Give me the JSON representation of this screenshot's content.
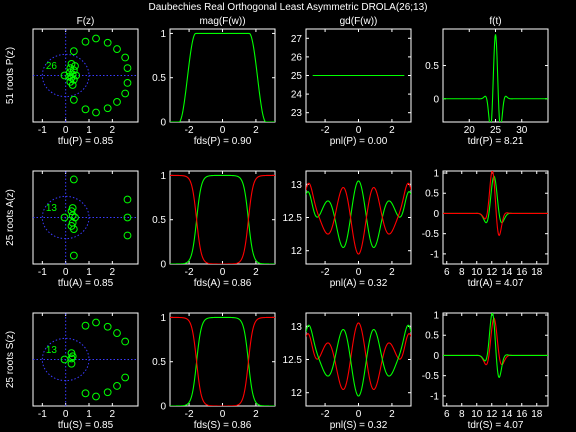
{
  "suptitle": "Daubechies Real Orthogonal Least Asymmetric DROLA(26;13)",
  "colors": {
    "green": "#00ff00",
    "red": "#ff0000",
    "blue": "#3a3aff",
    "axes": "#ffffff",
    "bg": "#000000"
  },
  "chart_data": [
    {
      "type": "scatter",
      "panel": "zeros-P",
      "title": "F(z)",
      "ylabel": "51 roots P(z)",
      "xlabel": "tfu(P) = 0.85",
      "xticks": [
        -1,
        0,
        1,
        2
      ],
      "yticks": [],
      "xlim": [
        -1.4,
        3.1
      ],
      "ylim": [
        -2.2,
        2.2
      ],
      "annotation": "26",
      "unit_circle": true,
      "grid": "dotted-axes",
      "points": [
        [
          0.35,
          1.15
        ],
        [
          0.85,
          1.6
        ],
        [
          1.3,
          1.75
        ],
        [
          1.8,
          1.55
        ],
        [
          2.2,
          1.25
        ],
        [
          2.55,
          0.85
        ],
        [
          2.65,
          0.35
        ],
        [
          2.65,
          -0.35
        ],
        [
          2.55,
          -0.85
        ],
        [
          2.2,
          -1.25
        ],
        [
          1.8,
          -1.55
        ],
        [
          1.3,
          -1.75
        ],
        [
          0.85,
          -1.6
        ],
        [
          0.35,
          -1.15
        ],
        [
          0.25,
          0.55
        ],
        [
          0.2,
          0.35
        ],
        [
          0.18,
          0.15
        ],
        [
          0.3,
          0.05
        ],
        [
          0.35,
          0.25
        ],
        [
          0.4,
          0.45
        ],
        [
          0.25,
          -0.1
        ],
        [
          0.2,
          -0.3
        ],
        [
          0.3,
          -0.45
        ],
        [
          0.35,
          -0.2
        ],
        [
          0.45,
          0.0
        ],
        [
          0.15,
          -0.05
        ],
        [
          -0.05,
          0.0
        ]
      ]
    },
    {
      "type": "line",
      "panel": "mag-P",
      "title": "mag(F(w))",
      "xlabel": "fds(P) = 0.90",
      "xticks": [
        -2,
        0,
        2
      ],
      "yticks": [
        0,
        0.5,
        1
      ],
      "xlim": [
        -3.14159,
        3.14159
      ],
      "ylim": [
        0,
        1.05
      ],
      "series": [
        {
          "color": "green",
          "func": "magP"
        }
      ]
    },
    {
      "type": "line",
      "panel": "gd-P",
      "title": "gd(F(w))",
      "xlabel": "pnl(P) = 0.00",
      "xticks": [
        -2,
        0,
        2
      ],
      "yticks": [
        23,
        24,
        25,
        26,
        27
      ],
      "xlim": [
        -3.14159,
        3.14159
      ],
      "ylim": [
        22.5,
        27.5
      ],
      "series": [
        {
          "color": "green",
          "func": "constP"
        }
      ]
    },
    {
      "type": "line",
      "panel": "time-P",
      "title": "f(t)",
      "xlabel": "tdr(P) = 8.21",
      "xticks": [
        20,
        25,
        30
      ],
      "yticks": [
        0,
        0.5
      ],
      "xlim": [
        15,
        35
      ],
      "ylim": [
        -0.35,
        1.05
      ],
      "series": [
        {
          "color": "green",
          "func": "timeP"
        }
      ]
    },
    {
      "type": "scatter",
      "panel": "zeros-A",
      "ylabel": "25 roots A(z)",
      "xlabel": "tfu(A) = 0.85",
      "xticks": [
        -1,
        0,
        1,
        2
      ],
      "yticks": [],
      "xlim": [
        -1.4,
        3.1
      ],
      "ylim": [
        -2.2,
        2.2
      ],
      "annotation": "13",
      "unit_circle": true,
      "grid": "dotted-axes",
      "points": [
        [
          0.35,
          1.8
        ],
        [
          2.65,
          0.85
        ],
        [
          2.65,
          0.0
        ],
        [
          2.65,
          -0.85
        ],
        [
          0.35,
          -1.8
        ],
        [
          0.3,
          0.45
        ],
        [
          0.3,
          0.1
        ],
        [
          0.3,
          -0.25
        ],
        [
          0.35,
          -0.55
        ],
        [
          0.4,
          0.0
        ],
        [
          0.25,
          0.3
        ],
        [
          0.25,
          -0.4
        ],
        [
          -0.05,
          0.0
        ]
      ]
    },
    {
      "type": "line",
      "panel": "mag-A",
      "xlabel": "fds(A) = 0.86",
      "xticks": [
        -2,
        0,
        2
      ],
      "yticks": [
        0,
        0.5,
        1
      ],
      "xlim": [
        -3.14159,
        3.14159
      ],
      "ylim": [
        0,
        1.05
      ],
      "series": [
        {
          "color": "green",
          "func": "magLow"
        },
        {
          "color": "red",
          "func": "magHigh"
        }
      ]
    },
    {
      "type": "line",
      "panel": "gd-A",
      "xlabel": "pnl(A) = 0.32",
      "xticks": [
        -2,
        0,
        2
      ],
      "yticks": [
        12,
        12.5,
        13
      ],
      "xlim": [
        -3.14159,
        3.14159
      ],
      "ylim": [
        11.8,
        13.2
      ],
      "series": [
        {
          "color": "green",
          "func": "gdA1"
        },
        {
          "color": "red",
          "func": "gdA2"
        }
      ]
    },
    {
      "type": "line",
      "panel": "time-A",
      "xlabel": "tdr(A) = 4.07",
      "xticks": [
        6,
        8,
        10,
        12,
        14,
        16,
        18
      ],
      "yticks": [
        -1,
        -0.5,
        0,
        0.5,
        1
      ],
      "xlim": [
        5.5,
        19.5
      ],
      "ylim": [
        -1.25,
        1.05
      ],
      "series": [
        {
          "color": "green",
          "func": "timeA1"
        },
        {
          "color": "red",
          "func": "timeA2"
        }
      ]
    },
    {
      "type": "scatter",
      "panel": "zeros-S",
      "ylabel": "25 roots S(z)",
      "xlabel": "tfu(S) = 0.85",
      "xticks": [
        -1,
        0,
        1,
        2
      ],
      "yticks": [],
      "xlim": [
        -1.4,
        3.1
      ],
      "ylim": [
        -2.2,
        2.2
      ],
      "annotation": "13",
      "unit_circle": true,
      "grid": "dotted-axes",
      "points": [
        [
          1.3,
          1.75
        ],
        [
          1.8,
          1.55
        ],
        [
          2.2,
          1.25
        ],
        [
          2.55,
          0.85
        ],
        [
          0.85,
          1.6
        ],
        [
          2.55,
          -0.85
        ],
        [
          2.2,
          -1.25
        ],
        [
          1.8,
          -1.55
        ],
        [
          1.3,
          -1.75
        ],
        [
          0.85,
          -1.6
        ],
        [
          0.25,
          0.3
        ],
        [
          0.25,
          0.05
        ],
        [
          0.25,
          -0.2
        ],
        [
          0.3,
          0.15
        ],
        [
          -0.05,
          0.0
        ]
      ]
    },
    {
      "type": "line",
      "panel": "mag-S",
      "xlabel": "fds(S) = 0.86",
      "xticks": [
        -2,
        0,
        2
      ],
      "yticks": [
        0,
        0.5,
        1
      ],
      "xlim": [
        -3.14159,
        3.14159
      ],
      "ylim": [
        0,
        1.05
      ],
      "series": [
        {
          "color": "green",
          "func": "magLow"
        },
        {
          "color": "red",
          "func": "magHigh"
        }
      ]
    },
    {
      "type": "line",
      "panel": "gd-S",
      "xlabel": "pnl(S) = 0.32",
      "xticks": [
        -2,
        0,
        2
      ],
      "yticks": [
        12,
        12.5,
        13
      ],
      "xlim": [
        -3.14159,
        3.14159
      ],
      "ylim": [
        11.8,
        13.2
      ],
      "series": [
        {
          "color": "red",
          "func": "gdA1"
        },
        {
          "color": "green",
          "func": "gdA2"
        }
      ]
    },
    {
      "type": "line",
      "panel": "time-S",
      "xlabel": "tdr(S) = 4.07",
      "xticks": [
        6,
        8,
        10,
        12,
        14,
        16,
        18
      ],
      "yticks": [
        -1,
        -0.5,
        0,
        0.5,
        1
      ],
      "xlim": [
        5.5,
        19.5
      ],
      "ylim": [
        -1.25,
        1.05
      ],
      "series": [
        {
          "color": "red",
          "func": "timeA1"
        },
        {
          "color": "green",
          "func": "timeA2"
        }
      ]
    }
  ]
}
